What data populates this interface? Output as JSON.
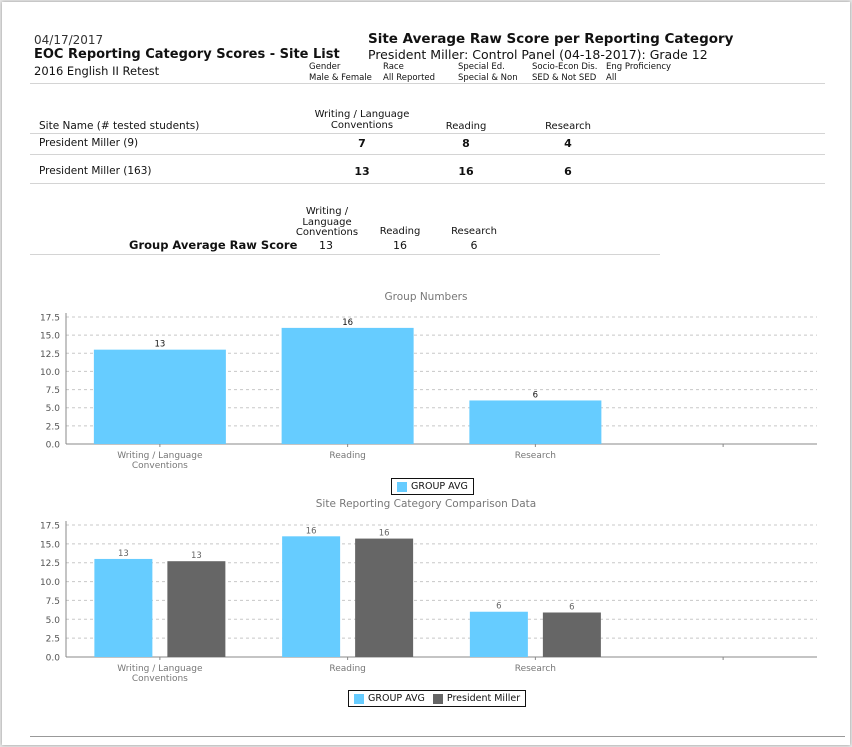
{
  "report": {
    "date": "04/17/2017",
    "title": "EOC Reporting Category Scores - Site List",
    "subtitle": "2016 English II Retest",
    "right_title": "Site Average Raw Score per Reporting Category",
    "right_subtitle": "President Miller: Control Panel (04-18-2017): Grade  12"
  },
  "filters": [
    {
      "label": "Gender",
      "value": "Male & Female"
    },
    {
      "label": "Race",
      "value": "All Reported"
    },
    {
      "label": "Special Ed.",
      "value": "Special & Non"
    },
    {
      "label": "Socio-Econ Dis.",
      "value": "SED & Not SED"
    },
    {
      "label": "Eng Proficiency",
      "value": "All"
    }
  ],
  "table": {
    "site_header": "Site Name (# tested students)",
    "columns": [
      "Writing / Language\nConventions",
      "Reading",
      "Research"
    ],
    "rows": [
      {
        "site": "President Miller (9)",
        "values": [
          "7",
          "8",
          "4"
        ]
      },
      {
        "site": "President Miller (163)",
        "values": [
          "13",
          "16",
          "6"
        ]
      }
    ]
  },
  "group_average": {
    "label": "Group Average Raw Score",
    "columns": [
      "Writing /\nLanguage\nConventions",
      "Reading",
      "Research"
    ],
    "values": [
      "13",
      "16",
      "6"
    ]
  },
  "colors": {
    "group_avg": "#66ccff",
    "president_miller": "#666666"
  },
  "chart_data": [
    {
      "type": "bar",
      "title": "Group Numbers",
      "categories": [
        "Writing / Language\nConventions",
        "Reading",
        "Research",
        ""
      ],
      "series": [
        {
          "name": "GROUP AVG",
          "values": [
            13,
            16,
            6,
            null
          ],
          "color": "#66ccff"
        }
      ],
      "ylim": [
        0,
        17.5
      ],
      "yticks": [
        "0.0",
        "2.5",
        "5.0",
        "7.5",
        "10.0",
        "12.5",
        "15.0",
        "17.5"
      ],
      "xlabel": "",
      "ylabel": "",
      "grid": true,
      "legend": "bottom-center",
      "data_labels": [
        "13",
        "16",
        "6"
      ]
    },
    {
      "type": "bar",
      "title": "Site Reporting Category Comparison Data",
      "categories": [
        "Writing / Language\nConventions",
        "Reading",
        "Research",
        ""
      ],
      "series": [
        {
          "name": "GROUP AVG",
          "values": [
            13,
            16,
            6,
            null
          ],
          "color": "#66ccff"
        },
        {
          "name": "President Miller",
          "values": [
            12.7,
            15.7,
            5.9,
            null
          ],
          "color": "#666666"
        }
      ],
      "ylim": [
        0,
        17.5
      ],
      "yticks": [
        "0.0",
        "2.5",
        "5.0",
        "7.5",
        "10.0",
        "12.5",
        "15.0",
        "17.5"
      ],
      "xlabel": "",
      "ylabel": "",
      "grid": true,
      "legend": "bottom-center",
      "data_labels": [
        [
          "13",
          "16",
          "6"
        ],
        [
          "13",
          "16",
          "6"
        ]
      ]
    }
  ]
}
